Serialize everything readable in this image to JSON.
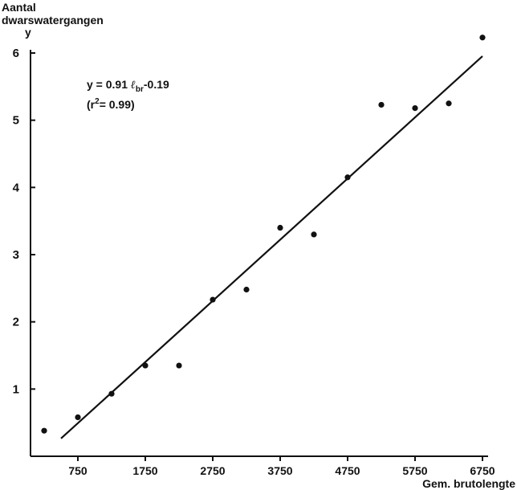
{
  "chart_data": {
    "type": "scatter",
    "ylabel_line1": "Aantal",
    "ylabel_line2": "dwarswatergangen",
    "y_axis_letter": "y",
    "xlabel": "Gem. brutolengte",
    "equation": {
      "prefix": "y = 0.91 ",
      "var": "ℓ",
      "sub": "br",
      "suffix": "-0.19"
    },
    "r2": {
      "open": "(r",
      "sup": "2",
      "close": "= 0.99)"
    },
    "xlim": [
      250,
      6750
    ],
    "ylim": [
      0,
      6
    ],
    "x_ticks": [
      750,
      1750,
      2750,
      3750,
      4750,
      5750,
      6750
    ],
    "x_tick_labels": [
      "750",
      "1750",
      "2750",
      "3750",
      "4750",
      "5750",
      "6750"
    ],
    "y_ticks": [
      1,
      2,
      3,
      4,
      5,
      6
    ],
    "y_tick_labels": [
      "1",
      "2",
      "3",
      "4",
      "5",
      "6"
    ],
    "points": [
      {
        "x": 250,
        "y": 0.38
      },
      {
        "x": 750,
        "y": 0.58
      },
      {
        "x": 1250,
        "y": 0.93
      },
      {
        "x": 1750,
        "y": 1.35
      },
      {
        "x": 2250,
        "y": 1.35
      },
      {
        "x": 2750,
        "y": 2.33
      },
      {
        "x": 3250,
        "y": 2.48
      },
      {
        "x": 3750,
        "y": 3.4
      },
      {
        "x": 4250,
        "y": 3.3
      },
      {
        "x": 4750,
        "y": 4.15
      },
      {
        "x": 5250,
        "y": 5.23
      },
      {
        "x": 5750,
        "y": 5.18
      },
      {
        "x": 6250,
        "y": 5.25
      },
      {
        "x": 6750,
        "y": 6.23
      }
    ],
    "fit_line": {
      "slope": 0.91,
      "intercept": -0.19,
      "x_start": 500,
      "x_end": 6750
    },
    "grid": false,
    "legend": "none"
  }
}
